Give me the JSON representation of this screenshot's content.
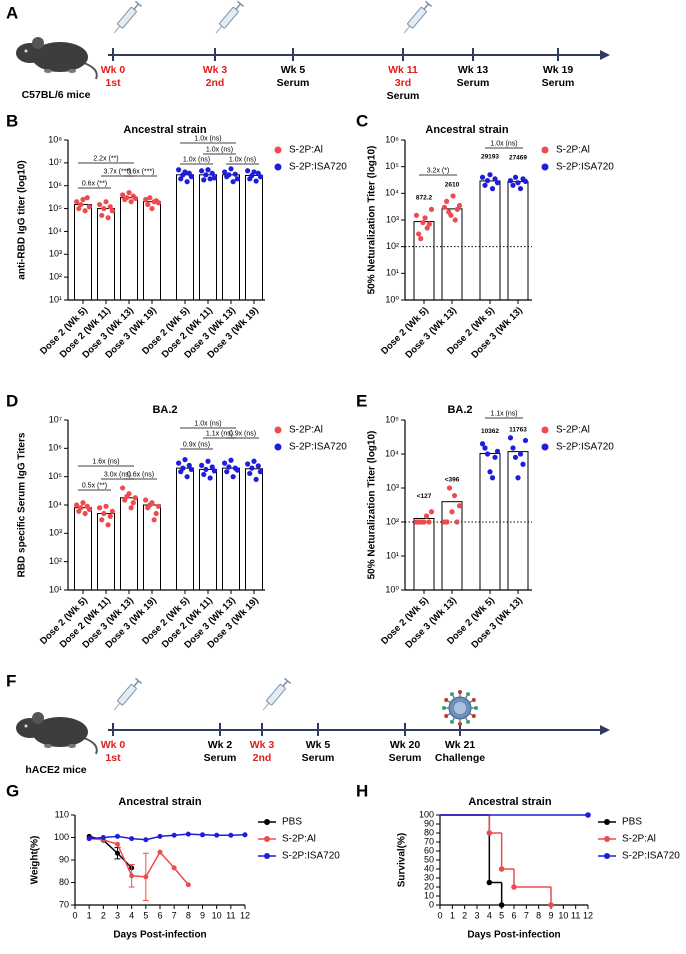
{
  "panel_labels": [
    "A",
    "B",
    "C",
    "D",
    "E",
    "F",
    "G",
    "H"
  ],
  "dose_color": "#e01e1e",
  "timelines": [
    {
      "mouse_label": "C57BL/6 mice",
      "events": [
        {
          "week": "Wk 0",
          "dose": "1st"
        },
        {
          "week": "Wk 3",
          "dose": "2nd"
        },
        {
          "week": "Wk 5",
          "sample": "Serum"
        },
        {
          "week": "Wk 11",
          "dose": "3rd",
          "sample": "Serum"
        },
        {
          "week": "Wk 13",
          "sample": "Serum"
        },
        {
          "week": "Wk 19",
          "sample": "Serum"
        }
      ]
    },
    {
      "mouse_label": "hACE2 mice",
      "events": [
        {
          "week": "Wk 0",
          "dose": "1st"
        },
        {
          "week": "Wk 2",
          "sample": "Serum"
        },
        {
          "week": "Wk 3",
          "dose": "2nd"
        },
        {
          "week": "Wk 5",
          "sample": "Serum"
        },
        {
          "week": "Wk 20",
          "sample": "Serum"
        },
        {
          "week": "Wk 21",
          "sample": "Challenge"
        }
      ]
    }
  ],
  "chart_data": [
    {
      "type": "bar",
      "title": "Ancestral strain",
      "y_label": "anti-RBD IgG titer (log10)",
      "log": true,
      "categories": [
        "Dose 2 (Wk 5)",
        "Dose 2 (Wk 11)",
        "Dose 3 (Wk 13)",
        "Dose 3 (Wk 19)",
        "Dose 2 (Wk 5)",
        "Dose 2 (Wk 11)",
        "Dose 3 (Wk 13)",
        "Dose 3 (Wk 19)"
      ],
      "ylim": [
        10,
        100000000
      ],
      "yticks": [
        {
          "value": 10,
          "label": "10¹"
        },
        {
          "value": 100,
          "label": "10²"
        },
        {
          "value": 1000,
          "label": "10³"
        },
        {
          "value": 10000,
          "label": "10⁴"
        },
        {
          "value": 100000,
          "label": "10⁵"
        },
        {
          "value": 1000000,
          "label": "10⁶"
        },
        {
          "value": 10000000,
          "label": "10⁷"
        },
        {
          "value": 100000000,
          "label": "10⁸"
        }
      ],
      "series": [
        {
          "name": "S-2P:Al",
          "color": "#ee4b4f",
          "values": [
            150000,
            100000,
            300000,
            200000,
            null,
            null,
            null,
            null
          ],
          "points": [
            [
              200000,
              100000,
              150000,
              250000,
              80000,
              300000,
              120000
            ],
            [
              150000,
              50000,
              100000,
              200000,
              40000,
              120000,
              80000
            ],
            [
              400000,
              250000,
              300000,
              500000,
              200000,
              350000,
              280000
            ],
            [
              250000,
              150000,
              300000,
              100000,
              200000,
              220000,
              180000
            ],
            null,
            null,
            null,
            null
          ]
        },
        {
          "name": "S-2P:ISA720",
          "color": "#1d1ddb",
          "values": [
            null,
            null,
            null,
            null,
            3000000,
            3000000,
            3000000,
            2800000
          ],
          "points": [
            null,
            null,
            null,
            null,
            [
              5000000,
              2000000,
              3000000,
              4000000,
              1500000,
              3500000,
              2500000
            ],
            [
              4500000,
              1800000,
              3000000,
              5000000,
              2000000,
              3500000,
              2200000
            ],
            [
              4000000,
              2500000,
              3000000,
              5500000,
              1500000,
              3200000,
              2000000
            ],
            [
              4500000,
              2000000,
              2800000,
              4000000,
              1600000,
              3500000,
              2500000
            ]
          ]
        }
      ],
      "brackets": [
        "2.2x (**)",
        "3.7x (***)",
        "0.6x (***)",
        "0.6x (**)",
        "1.0x (ns)",
        "1.0x (ns)",
        "1.0x (ns)",
        "1.0x (ns)"
      ]
    },
    {
      "type": "bar",
      "title": "Ancestral strain",
      "y_label": "50% Neturalization Titer (log10)",
      "log": true,
      "show_values": true,
      "ref_line": 100,
      "categories": [
        "Dose 2 (Wk 5)",
        "Dose 3 (Wk 13)",
        "Dose 2 (Wk 5)",
        "Dose 3 (Wk 13)"
      ],
      "ylim": [
        1,
        1000000
      ],
      "yticks": [
        {
          "value": 1,
          "label": "10⁰"
        },
        {
          "value": 10,
          "label": "10¹"
        },
        {
          "value": 100,
          "label": "10²"
        },
        {
          "value": 1000,
          "label": "10³"
        },
        {
          "value": 10000,
          "label": "10⁴"
        },
        {
          "value": 100000,
          "label": "10⁵"
        },
        {
          "value": 1000000,
          "label": "10⁶"
        }
      ],
      "series": [
        {
          "name": "S-2P:Al",
          "color": "#ee4b4f",
          "values": [
            872.2,
            2610,
            null,
            null
          ],
          "points": [
            [
              1500,
              300,
              200,
              800,
              1200,
              500,
              700,
              2500
            ],
            [
              3000,
              5000,
              2000,
              1500,
              8000,
              1000,
              2500,
              3500
            ],
            null,
            null
          ]
        },
        {
          "name": "S-2P:ISA720",
          "color": "#1d1ddb",
          "values": [
            null,
            null,
            29193,
            27469
          ],
          "points": [
            null,
            null,
            [
              40000,
              20000,
              30000,
              50000,
              15000,
              35000,
              25000
            ],
            [
              30000,
              20000,
              40000,
              25000,
              15000,
              35000,
              28000
            ]
          ]
        }
      ],
      "brackets": [
        "3.2x (*)",
        "1.0x (ns)"
      ]
    },
    {
      "type": "bar",
      "title": "BA.2",
      "y_label": "RBD specific Serum IgG Titers",
      "log": true,
      "categories": [
        "Dose 2 (Wk 5)",
        "Dose 2 (Wk 11)",
        "Dose 3 (Wk 13)",
        "Dose 3 (Wk 19)",
        "Dose 2 (Wk 5)",
        "Dose 2 (Wk 11)",
        "Dose 3 (Wk 13)",
        "Dose 3 (Wk 19)"
      ],
      "ylim": [
        10,
        10000000
      ],
      "yticks": [
        {
          "value": 10,
          "label": "10¹"
        },
        {
          "value": 100,
          "label": "10²"
        },
        {
          "value": 1000,
          "label": "10³"
        },
        {
          "value": 10000,
          "label": "10⁴"
        },
        {
          "value": 100000,
          "label": "10⁵"
        },
        {
          "value": 1000000,
          "label": "10⁶"
        },
        {
          "value": 10000000,
          "label": "10⁷"
        }
      ],
      "series": [
        {
          "name": "S-2P:Al",
          "color": "#ee4b4f",
          "values": [
            8000,
            5000,
            18000,
            10000,
            null,
            null,
            null,
            null
          ],
          "points": [
            [
              10000,
              6000,
              8000,
              12000,
              5000,
              9000,
              7000
            ],
            [
              8000,
              3000,
              5000,
              9000,
              2000,
              4000,
              6000
            ],
            [
              40000,
              15000,
              20000,
              25000,
              8000,
              12000,
              18000
            ],
            [
              15000,
              8000,
              10000,
              12000,
              3000,
              5000,
              9000
            ],
            null,
            null,
            null,
            null
          ]
        },
        {
          "name": "S-2P:ISA720",
          "color": "#1d1ddb",
          "values": [
            null,
            null,
            null,
            null,
            200000,
            180000,
            200000,
            190000
          ],
          "points": [
            null,
            null,
            null,
            null,
            [
              300000,
              150000,
              200000,
              400000,
              100000,
              250000,
              180000
            ],
            [
              250000,
              120000,
              180000,
              350000,
              90000,
              220000,
              160000
            ],
            [
              300000,
              150000,
              220000,
              380000,
              100000,
              200000,
              170000
            ],
            [
              280000,
              130000,
              200000,
              350000,
              80000,
              240000,
              150000
            ]
          ]
        }
      ],
      "brackets": [
        "1.6x (ns)",
        "0.5x (**)",
        "3.0x (ns)",
        "0.6x (ns)",
        "1.0x (ns)",
        "0.9x (ns)",
        "1.1x (ns)",
        "0.9x (ns)"
      ]
    },
    {
      "type": "bar",
      "title": "BA.2",
      "y_label": "50% Neturalization Titer (log10)",
      "log": true,
      "show_values": true,
      "ref_line": 100,
      "categories": [
        "Dose 2 (Wk 5)",
        "Dose 3 (Wk 13)",
        "Dose 2 (Wk 5)",
        "Dose 3 (Wk 13)"
      ],
      "ylim": [
        1,
        100000
      ],
      "yticks": [
        {
          "value": 1,
          "label": "10⁰"
        },
        {
          "value": 10,
          "label": "10¹"
        },
        {
          "value": 100,
          "label": "10²"
        },
        {
          "value": 1000,
          "label": "10³"
        },
        {
          "value": 10000,
          "label": "10⁴"
        },
        {
          "value": 100000,
          "label": "10⁵"
        }
      ],
      "series": [
        {
          "name": "S-2P:Al",
          "color": "#ee4b4f",
          "values": [
            127,
            396,
            null,
            null
          ],
          "value_labels": [
            "<127",
            "<396",
            null,
            null
          ],
          "points": [
            [
              100,
              100,
              100,
              100,
              150,
              100,
              200
            ],
            [
              100,
              100,
              1000,
              200,
              600,
              100,
              300
            ],
            null,
            null
          ]
        },
        {
          "name": "S-2P:ISA720",
          "color": "#1d1ddb",
          "values": [
            null,
            null,
            10362,
            11763
          ],
          "points": [
            null,
            null,
            [
              20000,
              15000,
              10000,
              3000,
              2000,
              8000,
              12000
            ],
            [
              30000,
              15000,
              8000,
              2000,
              10000,
              5000,
              25000
            ]
          ]
        }
      ],
      "brackets": [
        "1.1x (ns)"
      ]
    },
    {
      "type": "line",
      "title": "Ancestral strain",
      "x_label": "Days Post-infection",
      "y_label": "Weight(%)",
      "xlim": [
        0,
        12
      ],
      "xticks": [
        0,
        1,
        2,
        3,
        4,
        5,
        6,
        7,
        8,
        9,
        10,
        11,
        12
      ],
      "ylim": [
        70,
        110
      ],
      "yticks": [
        70,
        80,
        90,
        100,
        110
      ],
      "series": [
        {
          "name": "PBS",
          "color": "#000000",
          "x": [
            1,
            2,
            3,
            4
          ],
          "values": [
            100.5,
            98.8,
            93,
            86.5
          ],
          "errors": [
            null,
            null,
            2.5,
            null
          ]
        },
        {
          "name": "S-2P:Al",
          "color": "#ee4b4f",
          "x": [
            1,
            2,
            3,
            4,
            5,
            6,
            7,
            8
          ],
          "values": [
            99.5,
            99,
            97,
            83,
            82.5,
            93.5,
            86.5,
            79
          ],
          "errors": [
            null,
            null,
            null,
            5,
            10.5,
            null,
            null,
            null
          ]
        },
        {
          "name": "S-2P:ISA720",
          "color": "#1d1ddb",
          "x": [
            1,
            2,
            3,
            4,
            5,
            6,
            7,
            8,
            9,
            10,
            11,
            12
          ],
          "values": [
            99.5,
            100,
            100.5,
            99.5,
            99,
            100.5,
            101,
            101.5,
            101.2,
            101,
            101,
            101.2
          ],
          "errors": [
            null,
            null,
            null,
            null,
            null,
            null,
            null,
            null,
            null,
            null,
            null,
            null
          ]
        }
      ]
    },
    {
      "type": "step",
      "title": "Ancestral strain",
      "x_label": "Days Post-infection",
      "y_label": "Survival(%)",
      "xlim": [
        0,
        12
      ],
      "xticks": [
        0,
        1,
        2,
        3,
        4,
        5,
        6,
        7,
        8,
        9,
        10,
        11,
        12
      ],
      "ylim": [
        0,
        100
      ],
      "yticks": [
        0,
        10,
        20,
        30,
        40,
        50,
        60,
        70,
        80,
        90,
        100
      ],
      "series": [
        {
          "name": "PBS",
          "color": "#000000",
          "x": [
            0,
            4,
            5
          ],
          "values": [
            100,
            25,
            0
          ]
        },
        {
          "name": "S-2P:Al",
          "color": "#ee4b4f",
          "x": [
            0,
            4,
            5,
            6,
            9
          ],
          "values": [
            100,
            80,
            40,
            20,
            0
          ]
        },
        {
          "name": "S-2P:ISA720",
          "color": "#1d1ddb",
          "x": [
            0,
            12
          ],
          "values": [
            100,
            100
          ]
        }
      ]
    }
  ]
}
